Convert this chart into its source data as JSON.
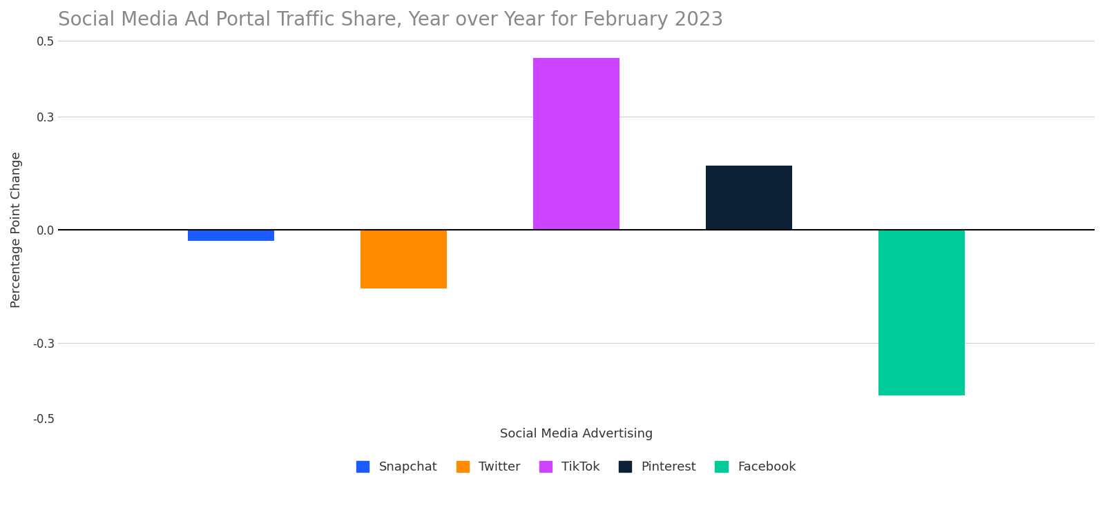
{
  "title": "Social Media Ad Portal Traffic Share, Year over Year for February 2023",
  "xlabel": "Social Media Advertising",
  "ylabel": "Percentage Point Change",
  "categories": [
    "Snapchat",
    "Twitter",
    "TikTok",
    "Pinterest",
    "Facebook"
  ],
  "values": [
    -0.03,
    -0.155,
    0.455,
    0.17,
    -0.44
  ],
  "colors": [
    "#1a5cff",
    "#ff8c00",
    "#cc44ff",
    "#0d2035",
    "#00cc99"
  ],
  "ylim": [
    -0.5,
    0.5
  ],
  "yticks": [
    -0.5,
    -0.3,
    0.0,
    0.3,
    0.5
  ],
  "background_color": "#ffffff",
  "title_color": "#888888",
  "title_fontsize": 20,
  "axis_label_fontsize": 13,
  "tick_fontsize": 12,
  "legend_fontsize": 13,
  "bar_width": 0.5,
  "grid_color": "#cccccc",
  "text_color": "#333333"
}
